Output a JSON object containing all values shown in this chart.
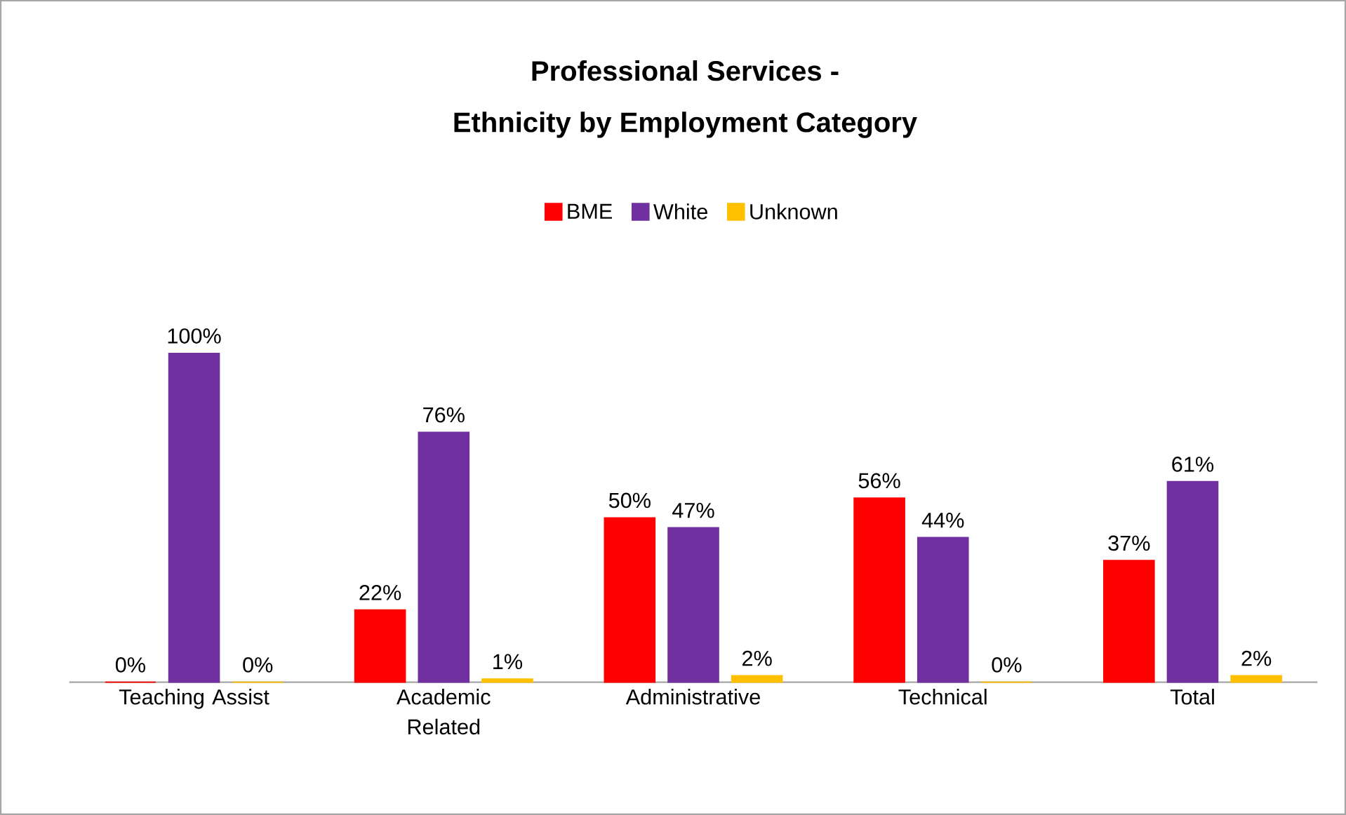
{
  "chart_data": {
    "type": "bar",
    "title": "Professional Services -",
    "subtitle": "Ethnicity by Employment Category",
    "categories": [
      "Teaching Assist",
      "Academic Related",
      "Administrative",
      "Technical",
      "Total"
    ],
    "series": [
      {
        "name": "BME",
        "color": "#ff0000",
        "values": [
          0,
          22,
          50,
          56,
          37
        ],
        "value_labels": [
          "0%",
          "22%",
          "50%",
          "56%",
          "37%"
        ]
      },
      {
        "name": "White",
        "color": "#7030a0",
        "values": [
          100,
          76,
          47,
          44,
          61
        ],
        "value_labels": [
          "100%",
          "76%",
          "47%",
          "44%",
          "61%"
        ]
      },
      {
        "name": "Unknown",
        "color": "#ffc000",
        "values": [
          0,
          1,
          2,
          0,
          2
        ],
        "value_labels": [
          "0%",
          "1%",
          "2%",
          "0%",
          "2%"
        ]
      }
    ],
    "legend": "top"
  }
}
